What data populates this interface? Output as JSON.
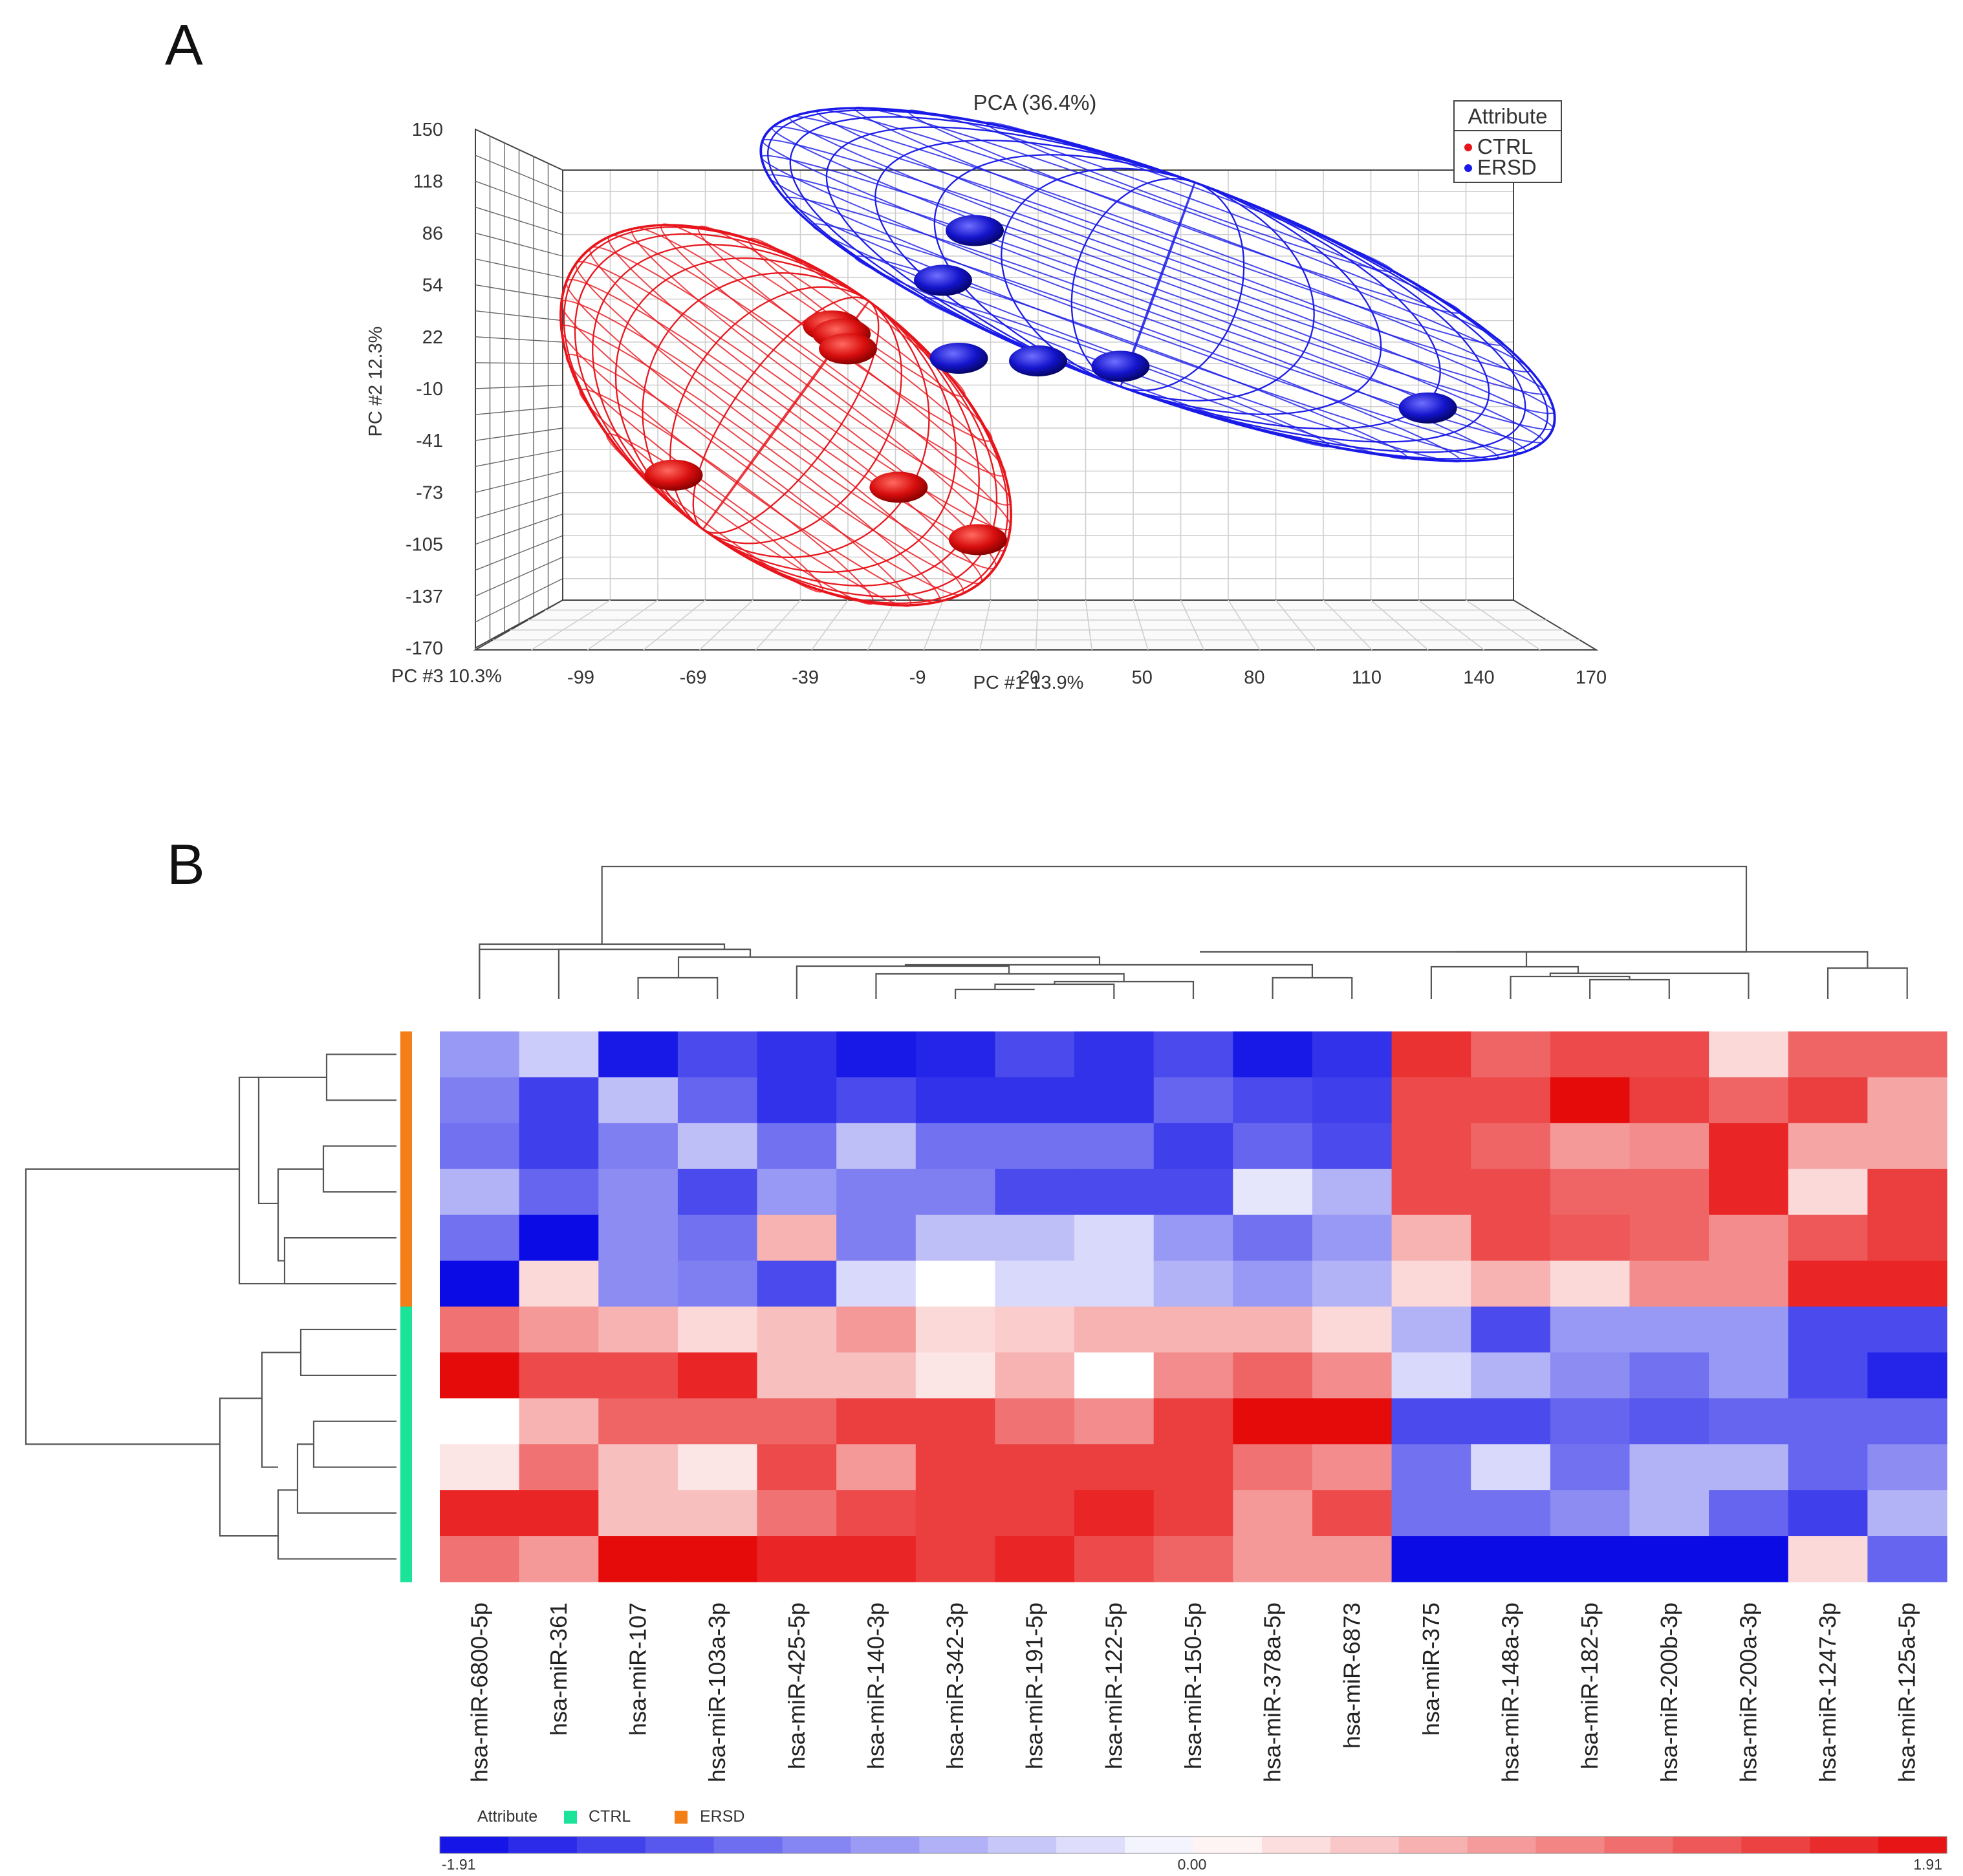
{
  "panels": {
    "a_letter": "A",
    "b_letter": "B"
  },
  "chart_data": [
    {
      "type": "scatter",
      "title": "PCA (36.4%)",
      "xlabel": "PC #1 13.9%",
      "ylabel": "PC #2 12.3%",
      "zlabel": "PC #3 10.3%",
      "x_ticks": [
        "-99",
        "-69",
        "-39",
        "-9",
        "20",
        "50",
        "80",
        "110",
        "140",
        "170"
      ],
      "y_ticks": [
        "150",
        "118",
        "86",
        "54",
        "22",
        "-10",
        "-41",
        "-73",
        "-105",
        "-137",
        "-170"
      ],
      "xlim": [
        -130,
        170
      ],
      "ylim": [
        -170,
        150
      ],
      "legend": {
        "title": "Attribute",
        "position": "top-right"
      },
      "series": [
        {
          "name": "CTRL",
          "color": "#e8141b",
          "points": [
            {
              "x": -45,
              "y": 34
            },
            {
              "x": -42,
              "y": 28
            },
            {
              "x": -40,
              "y": 17
            },
            {
              "x": -95,
              "y": -77
            },
            {
              "x": -24,
              "y": -86
            },
            {
              "x": 1,
              "y": -125
            }
          ]
        },
        {
          "name": "ERSD",
          "color": "#1a1ae8",
          "points": [
            {
              "x": 0,
              "y": 105
            },
            {
              "x": -10,
              "y": 68
            },
            {
              "x": -5,
              "y": 10
            },
            {
              "x": 20,
              "y": 8
            },
            {
              "x": 46,
              "y": 4
            },
            {
              "x": 143,
              "y": -27
            }
          ]
        }
      ]
    },
    {
      "type": "heatmap",
      "columns": [
        "hsa-miR-6800-5p",
        "hsa-miR-361",
        "hsa-miR-107",
        "hsa-miR-103a-3p",
        "hsa-miR-425-5p",
        "hsa-miR-140-3p",
        "hsa-miR-342-3p",
        "hsa-miR-191-5p",
        "hsa-miR-122-5p",
        "hsa-miR-150-5p",
        "hsa-miR-378a-5p",
        "hsa-miR-6873",
        "hsa-miR-375",
        "hsa-miR-148a-3p",
        "hsa-miR-182-5p",
        "hsa-miR-200b-3p",
        "hsa-miR-200a-3p",
        "hsa-miR-1247-3p",
        "hsa-miR-125a-5p"
      ],
      "row_groups": [
        "ERSD",
        "ERSD",
        "ERSD",
        "ERSD",
        "ERSD",
        "ERSD",
        "CTRL",
        "CTRL",
        "CTRL",
        "CTRL",
        "CTRL",
        "CTRL"
      ],
      "values": [
        [
          -0.8,
          -0.4,
          -1.8,
          -1.4,
          -1.6,
          -1.8,
          -1.7,
          -1.4,
          -1.6,
          -1.4,
          -1.8,
          -1.6,
          1.6,
          1.2,
          1.4,
          1.4,
          0.3,
          1.2,
          1.2
        ],
        [
          -1.0,
          -1.5,
          -0.5,
          -1.2,
          -1.6,
          -1.4,
          -1.6,
          -1.6,
          -1.6,
          -1.2,
          -1.4,
          -1.5,
          1.4,
          1.4,
          1.9,
          1.5,
          1.2,
          1.5,
          0.7
        ],
        [
          -1.1,
          -1.5,
          -1.0,
          -0.5,
          -1.1,
          -0.5,
          -1.1,
          -1.1,
          -1.1,
          -1.5,
          -1.2,
          -1.4,
          1.4,
          1.2,
          0.8,
          0.9,
          1.7,
          0.7,
          0.7
        ],
        [
          -0.6,
          -1.2,
          -0.9,
          -1.4,
          -0.8,
          -1.0,
          -1.0,
          -1.4,
          -1.4,
          -1.4,
          -0.2,
          -0.6,
          1.4,
          1.4,
          1.2,
          1.2,
          1.7,
          0.3,
          1.5
        ],
        [
          -1.1,
          -1.9,
          -0.9,
          -1.1,
          0.6,
          -1.0,
          -0.5,
          -0.5,
          -0.3,
          -0.8,
          -1.1,
          -0.8,
          0.6,
          1.4,
          1.3,
          1.2,
          0.9,
          1.3,
          1.5
        ],
        [
          -1.9,
          0.3,
          -0.9,
          -1.0,
          -1.4,
          -0.3,
          0.0,
          -0.3,
          -0.3,
          -0.6,
          -0.8,
          -0.6,
          0.3,
          0.6,
          0.3,
          0.9,
          0.9,
          1.7,
          1.7
        ],
        [
          1.1,
          0.8,
          0.6,
          0.3,
          0.5,
          0.8,
          0.3,
          0.4,
          0.6,
          0.6,
          0.6,
          0.3,
          -0.6,
          -1.4,
          -0.8,
          -0.8,
          -0.8,
          -1.4,
          -1.4
        ],
        [
          1.9,
          1.4,
          1.4,
          1.7,
          0.5,
          0.5,
          0.2,
          0.6,
          0.0,
          0.9,
          1.2,
          0.9,
          -0.3,
          -0.6,
          -0.9,
          -1.1,
          -0.8,
          -1.4,
          -1.7
        ],
        [
          0.0,
          0.6,
          1.2,
          1.2,
          1.2,
          1.5,
          1.5,
          1.1,
          0.9,
          1.5,
          1.9,
          1.9,
          -1.4,
          -1.4,
          -1.2,
          -1.3,
          -1.2,
          -1.2,
          -1.2
        ],
        [
          0.2,
          1.1,
          0.5,
          0.2,
          1.4,
          0.8,
          1.5,
          1.5,
          1.5,
          1.5,
          1.1,
          0.9,
          -1.1,
          -0.3,
          -1.1,
          -0.6,
          -0.6,
          -1.2,
          -0.9
        ],
        [
          1.7,
          1.7,
          0.5,
          0.5,
          1.1,
          1.4,
          1.5,
          1.5,
          1.7,
          1.5,
          0.8,
          1.4,
          -1.1,
          -1.1,
          -0.9,
          -0.6,
          -1.2,
          -1.5,
          -0.6
        ],
        [
          1.1,
          0.8,
          1.9,
          1.9,
          1.7,
          1.7,
          1.5,
          1.7,
          1.4,
          1.2,
          0.8,
          0.8,
          -1.9,
          -1.9,
          -1.9,
          -1.9,
          -1.9,
          0.3,
          -1.2
        ]
      ],
      "color_scale": {
        "min": -1.91,
        "mid": 0.0,
        "max": 1.91,
        "min_label": "-1.91",
        "mid_label": "0.00",
        "max_label": "1.91"
      },
      "legend": {
        "title": "Attribute",
        "items": [
          {
            "label": "CTRL",
            "color": "#1be39a"
          },
          {
            "label": "ERSD",
            "color": "#f47e17"
          }
        ]
      }
    }
  ]
}
